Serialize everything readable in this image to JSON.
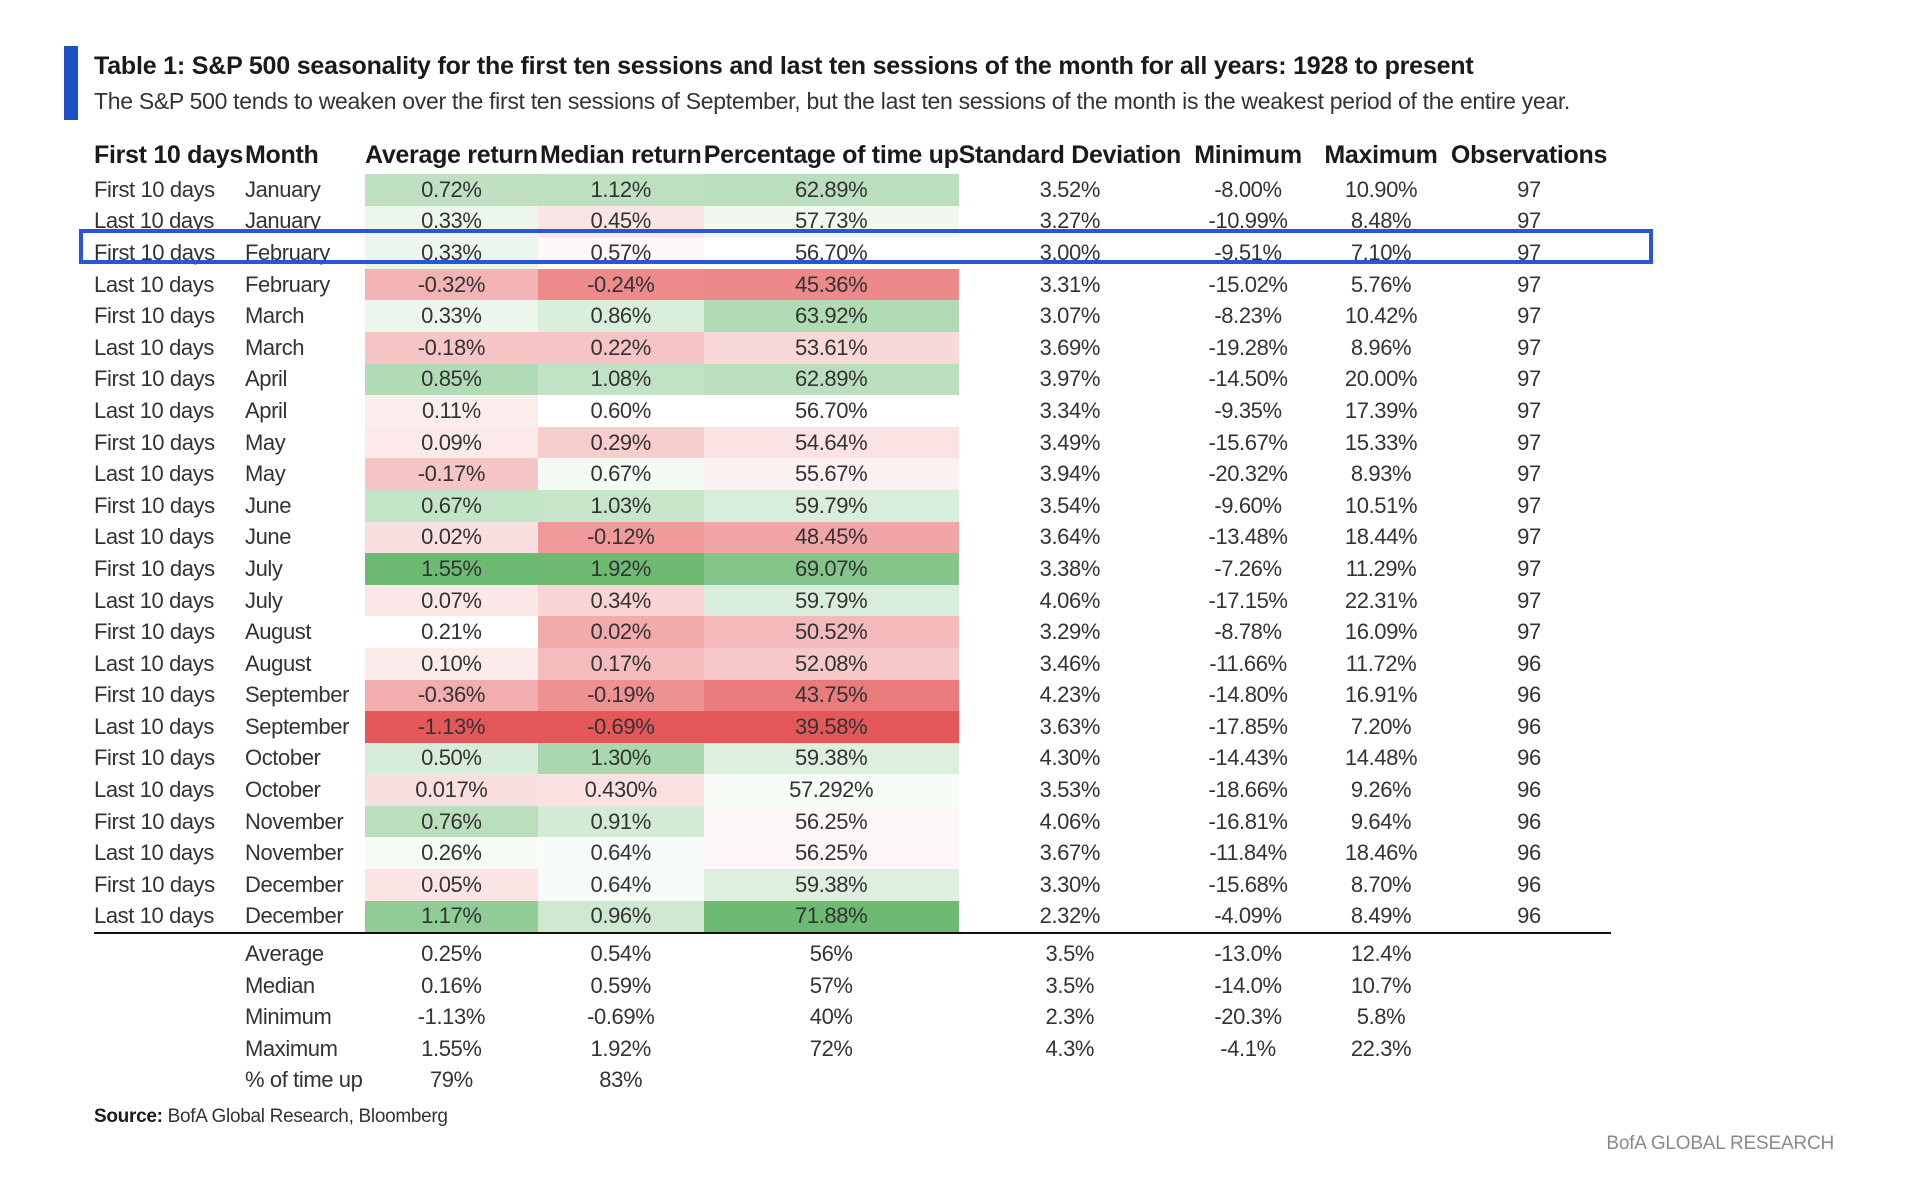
{
  "title": "Table 1: S&P 500 seasonality for the first ten sessions and last ten sessions of the month for all years: 1928 to present",
  "subtitle": "The S&P 500 tends to weaken over the first ten sessions of September, but the last ten sessions of the month is the weakest period of the entire year.",
  "headers": [
    "First 10 days",
    "Month",
    "Average return",
    "Median return",
    "Percentage of time up",
    "Standard Deviation",
    "Minimum",
    "Maximum",
    "Observations"
  ],
  "rows": [
    {
      "period": "First 10 days",
      "month": "January",
      "avg": "0.72%",
      "median": "1.12%",
      "pct_up": "62.89%",
      "sd": "3.52%",
      "min": "-8.00%",
      "max": "10.90%",
      "obs": "97"
    },
    {
      "period": "Last 10 days",
      "month": "January",
      "avg": "0.33%",
      "median": "0.45%",
      "pct_up": "57.73%",
      "sd": "3.27%",
      "min": "-10.99%",
      "max": "8.48%",
      "obs": "97"
    },
    {
      "period": "First 10 days",
      "month": "February",
      "avg": "0.33%",
      "median": "0.57%",
      "pct_up": "56.70%",
      "sd": "3.00%",
      "min": "-9.51%",
      "max": "7.10%",
      "obs": "97"
    },
    {
      "period": "Last 10 days",
      "month": "February",
      "avg": "-0.32%",
      "median": "-0.24%",
      "pct_up": "45.36%",
      "sd": "3.31%",
      "min": "-15.02%",
      "max": "5.76%",
      "obs": "97"
    },
    {
      "period": "First 10 days",
      "month": "March",
      "avg": "0.33%",
      "median": "0.86%",
      "pct_up": "63.92%",
      "sd": "3.07%",
      "min": "-8.23%",
      "max": "10.42%",
      "obs": "97"
    },
    {
      "period": "Last 10 days",
      "month": "March",
      "avg": "-0.18%",
      "median": "0.22%",
      "pct_up": "53.61%",
      "sd": "3.69%",
      "min": "-19.28%",
      "max": "8.96%",
      "obs": "97"
    },
    {
      "period": "First 10 days",
      "month": "April",
      "avg": "0.85%",
      "median": "1.08%",
      "pct_up": "62.89%",
      "sd": "3.97%",
      "min": "-14.50%",
      "max": "20.00%",
      "obs": "97"
    },
    {
      "period": "Last 10 days",
      "month": "April",
      "avg": "0.11%",
      "median": "0.60%",
      "pct_up": "56.70%",
      "sd": "3.34%",
      "min": "-9.35%",
      "max": "17.39%",
      "obs": "97"
    },
    {
      "period": "First 10 days",
      "month": "May",
      "avg": "0.09%",
      "median": "0.29%",
      "pct_up": "54.64%",
      "sd": "3.49%",
      "min": "-15.67%",
      "max": "15.33%",
      "obs": "97"
    },
    {
      "period": "Last 10 days",
      "month": "May",
      "avg": "-0.17%",
      "median": "0.67%",
      "pct_up": "55.67%",
      "sd": "3.94%",
      "min": "-20.32%",
      "max": "8.93%",
      "obs": "97"
    },
    {
      "period": "First 10 days",
      "month": "June",
      "avg": "0.67%",
      "median": "1.03%",
      "pct_up": "59.79%",
      "sd": "3.54%",
      "min": "-9.60%",
      "max": "10.51%",
      "obs": "97"
    },
    {
      "period": "Last 10 days",
      "month": "June",
      "avg": "0.02%",
      "median": "-0.12%",
      "pct_up": "48.45%",
      "sd": "3.64%",
      "min": "-13.48%",
      "max": "18.44%",
      "obs": "97"
    },
    {
      "period": "First 10 days",
      "month": "July",
      "avg": "1.55%",
      "median": "1.92%",
      "pct_up": "69.07%",
      "sd": "3.38%",
      "min": "-7.26%",
      "max": "11.29%",
      "obs": "97"
    },
    {
      "period": "Last 10 days",
      "month": "July",
      "avg": "0.07%",
      "median": "0.34%",
      "pct_up": "59.79%",
      "sd": "4.06%",
      "min": "-17.15%",
      "max": "22.31%",
      "obs": "97"
    },
    {
      "period": "First 10 days",
      "month": "August",
      "avg": "0.21%",
      "median": "0.02%",
      "pct_up": "50.52%",
      "sd": "3.29%",
      "min": "-8.78%",
      "max": "16.09%",
      "obs": "97"
    },
    {
      "period": "Last 10 days",
      "month": "August",
      "avg": "0.10%",
      "median": "0.17%",
      "pct_up": "52.08%",
      "sd": "3.46%",
      "min": "-11.66%",
      "max": "11.72%",
      "obs": "96"
    },
    {
      "period": "First 10 days",
      "month": "September",
      "avg": "-0.36%",
      "median": "-0.19%",
      "pct_up": "43.75%",
      "sd": "4.23%",
      "min": "-14.80%",
      "max": "16.91%",
      "obs": "96"
    },
    {
      "period": "Last 10 days",
      "month": "September",
      "avg": "-1.13%",
      "median": "-0.69%",
      "pct_up": "39.58%",
      "sd": "3.63%",
      "min": "-17.85%",
      "max": "7.20%",
      "obs": "96"
    },
    {
      "period": "First 10 days",
      "month": "October",
      "avg": "0.50%",
      "median": "1.30%",
      "pct_up": "59.38%",
      "sd": "4.30%",
      "min": "-14.43%",
      "max": "14.48%",
      "obs": "96"
    },
    {
      "period": "Last 10 days",
      "month": "October",
      "avg": "0.017%",
      "median": "0.430%",
      "pct_up": "57.292%",
      "sd": "3.53%",
      "min": "-18.66%",
      "max": "9.26%",
      "obs": "96"
    },
    {
      "period": "First 10 days",
      "month": "November",
      "avg": "0.76%",
      "median": "0.91%",
      "pct_up": "56.25%",
      "sd": "4.06%",
      "min": "-16.81%",
      "max": "9.64%",
      "obs": "96"
    },
    {
      "period": "Last 10 days",
      "month": "November",
      "avg": "0.26%",
      "median": "0.64%",
      "pct_up": "56.25%",
      "sd": "3.67%",
      "min": "-11.84%",
      "max": "18.46%",
      "obs": "96"
    },
    {
      "period": "First 10 days",
      "month": "December",
      "avg": "0.05%",
      "median": "0.64%",
      "pct_up": "59.38%",
      "sd": "3.30%",
      "min": "-15.68%",
      "max": "8.70%",
      "obs": "96"
    },
    {
      "period": "Last 10 days",
      "month": "December",
      "avg": "1.17%",
      "median": "0.96%",
      "pct_up": "71.88%",
      "sd": "2.32%",
      "min": "-4.09%",
      "max": "8.49%",
      "obs": "96"
    }
  ],
  "summary": [
    {
      "label": "Average",
      "avg": "0.25%",
      "median": "0.54%",
      "pct_up": "56%",
      "sd": "3.5%",
      "min": "-13.0%",
      "max": "12.4%"
    },
    {
      "label": "Median",
      "avg": "0.16%",
      "median": "0.59%",
      "pct_up": "57%",
      "sd": "3.5%",
      "min": "-14.0%",
      "max": "10.7%"
    },
    {
      "label": "Minimum",
      "avg": "-1.13%",
      "median": "-0.69%",
      "pct_up": "40%",
      "sd": "2.3%",
      "min": "-20.3%",
      "max": "5.8%"
    },
    {
      "label": "Maximum",
      "avg": "1.55%",
      "median": "1.92%",
      "pct_up": "72%",
      "sd": "4.3%",
      "min": "-4.1%",
      "max": "22.3%"
    },
    {
      "label": "% of time up",
      "avg": "79%",
      "median": "83%",
      "pct_up": "",
      "sd": "",
      "min": "",
      "max": ""
    }
  ],
  "highlighted_row_index": 2,
  "heatmap_colors": {
    "strong_green": "#6dbb73",
    "strong_red": "#e5585a",
    "neutral": "#ffffff",
    "highlight_border": "#2757d6",
    "accent_bar": "#1f4fc4"
  },
  "source_label": "Source:",
  "source_text": "BofA Global Research, Bloomberg",
  "brand": "BofA GLOBAL RESEARCH"
}
